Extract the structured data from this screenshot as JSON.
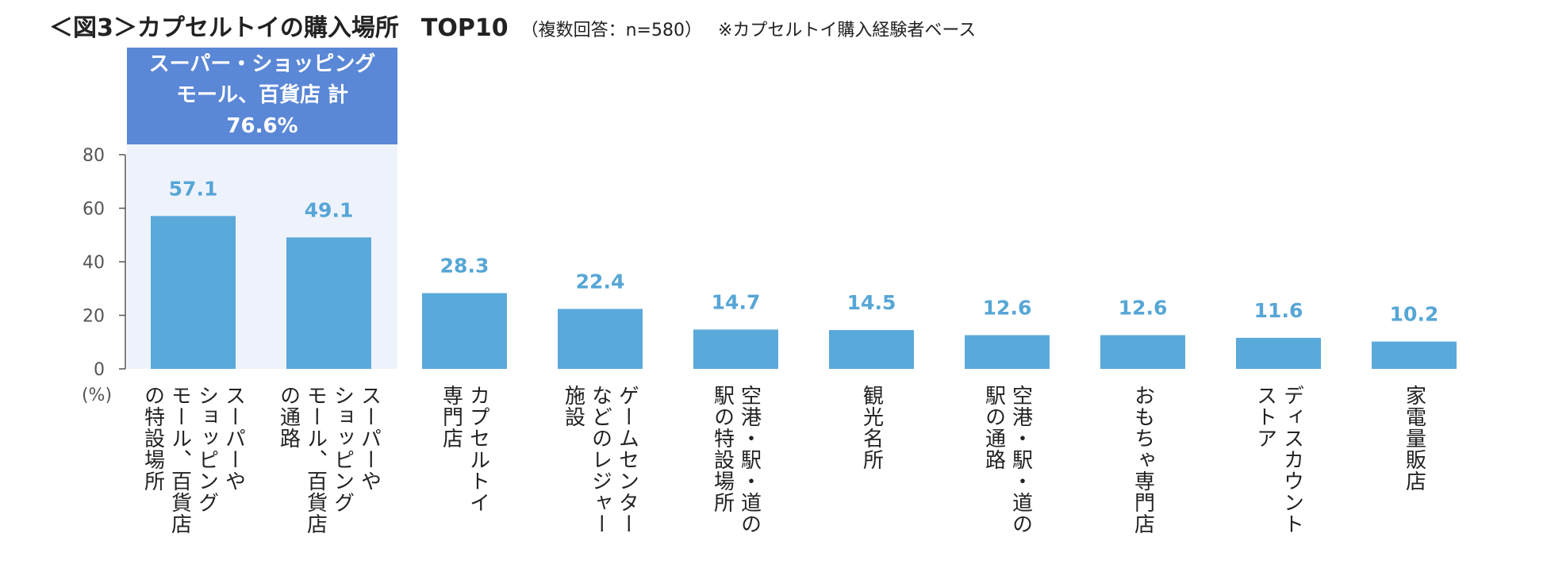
{
  "title": {
    "main": "＜図3＞カプセルトイの購入場所",
    "top10": "TOP10",
    "sub": "（複数回答：n=580）",
    "note": "※カプセルトイ購入経験者ベース"
  },
  "highlight": {
    "lines": [
      "スーパー・ショッピング",
      "モール、百貨店 計",
      "76.6%"
    ],
    "box_color": "#5a87d6",
    "shade_color": "#eef3fb"
  },
  "colors": {
    "bar": "#5aa9db",
    "value_label": "#56a6d6",
    "axis": "#555555"
  },
  "chart_data": {
    "type": "bar",
    "ylim": [
      0,
      80
    ],
    "yticks": [
      0,
      20,
      40,
      60,
      80
    ],
    "yunit": "(%)",
    "grid": false,
    "categories": [
      [
        "スーパーや",
        "ショッピング",
        "モール、百貨店",
        "の特設場所"
      ],
      [
        "スーパーや",
        "ショッピング",
        "モール、百貨店",
        "の通路"
      ],
      [
        "カプセルトイ",
        "専門店"
      ],
      [
        "ゲームセンター",
        "などのレジャー",
        "施設"
      ],
      [
        "空港・駅・道の",
        "駅の特設場所"
      ],
      [
        "観光名所"
      ],
      [
        "空港・駅・道の",
        "駅の通路"
      ],
      [
        "おもちゃ専門店"
      ],
      [
        "ディスカウント",
        "ストア"
      ],
      [
        "家電量販店"
      ]
    ],
    "values": [
      57.1,
      49.1,
      28.3,
      22.4,
      14.7,
      14.5,
      12.6,
      12.6,
      11.6,
      10.2
    ],
    "value_labels": [
      "57.1",
      "49.1",
      "28.3",
      "22.4",
      "14.7",
      "14.5",
      "12.6",
      "12.6",
      "11.6",
      "10.2"
    ]
  }
}
